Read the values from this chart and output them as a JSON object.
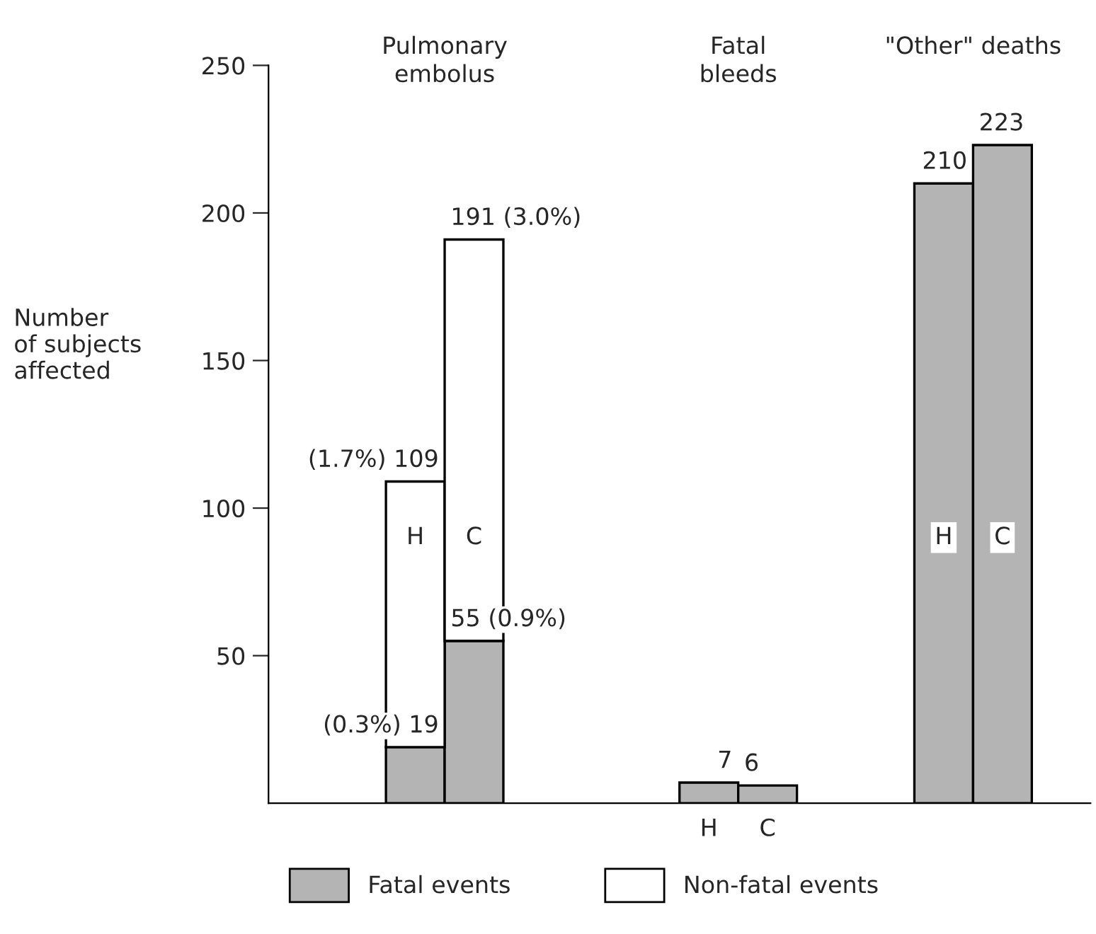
{
  "chart_data": {
    "type": "bar",
    "stacked": true,
    "ylabel": "Number\nof subjects\naffected",
    "categories": [
      null,
      "H",
      "C",
      null,
      null,
      null,
      "H",
      "C",
      null,
      null,
      "H",
      "C",
      null
    ],
    "series": [
      {
        "name": "Fatal events",
        "color": "#b4b4b4",
        "values": [
          null,
          19,
          55,
          null,
          null,
          null,
          7,
          6,
          null,
          null,
          210,
          223,
          null
        ],
        "value_labels": [
          null,
          "(0.3%) 19",
          "55 (0.9%)",
          null,
          null,
          null,
          "7",
          "6",
          null,
          null,
          "210",
          "223",
          null
        ]
      },
      {
        "name": "Non-fatal events",
        "color": "#ffffff",
        "values": [
          null,
          90,
          136,
          null,
          null,
          null,
          null,
          null,
          null,
          null,
          null,
          null,
          null
        ]
      }
    ],
    "totals": [
      null,
      "(1.7%) 109",
      "191 (3.0%)",
      null,
      null,
      null,
      null,
      null,
      null,
      null,
      null,
      null,
      null
    ],
    "annotations": [
      "Pulmonary\nembolus",
      "Fatal\nbleeds",
      "\"Other\" deaths"
    ],
    "ylim": [
      0,
      250
    ],
    "yticks": [
      50,
      100,
      150,
      200,
      250
    ],
    "grid": false,
    "legend": "bottom"
  }
}
